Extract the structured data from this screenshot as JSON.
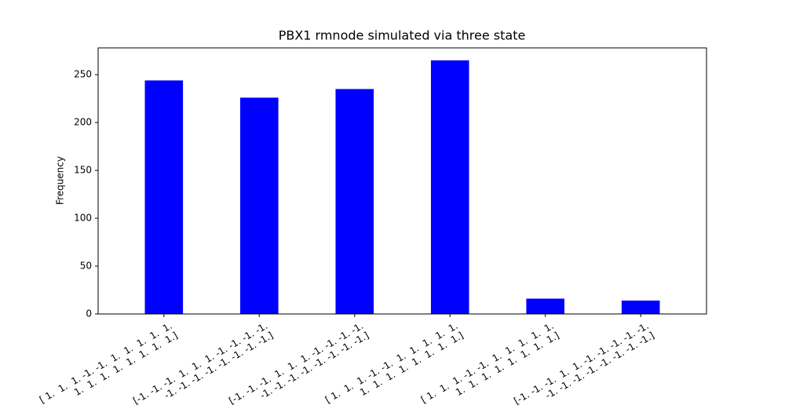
{
  "chart_data": {
    "type": "bar",
    "title": "PBX1 rmnode simulated via three state",
    "y_label": "Frequency",
    "categories": [
      "[ 1.  1.  1. -1. -1.  1.  1.  1.  1.  1.\n  1.  1.  1.  1.  1.  1.  1.  1.]",
      "[-1. -1. -1.  1.  1.  1. -1. -1. -1. -1.\n -1. -1. -1. -1. -1. -1. -1. -1.]",
      "[-1. -1. -1.  1.  1.  1. -1. -1. -1. -1.\n -1. -1. -1. -1. -1. -1. -1. -1.]",
      "[ 1.  1.  1. -1. -1.  1.  1.  1.  1.  1.\n  1.  1.  1.  1.  1.  1.  1.  1.]",
      "[ 1.  1.  1. -1. -1.  1.  1.  1.  1.  1.\n  1.  1.  1.  1.  1.  1.  1.  1.]",
      "[-1. -1. -1.  1.  1. -1. -1. -1. -1. -1.\n -1. -1. -1. -1. -1. -1. -1. -1.]"
    ],
    "values": [
      244,
      226,
      235,
      265,
      16,
      14
    ],
    "color": "#0000ff",
    "ylim": [
      0,
      278
    ],
    "yticks": [
      0,
      50,
      100,
      150,
      200,
      250
    ]
  }
}
